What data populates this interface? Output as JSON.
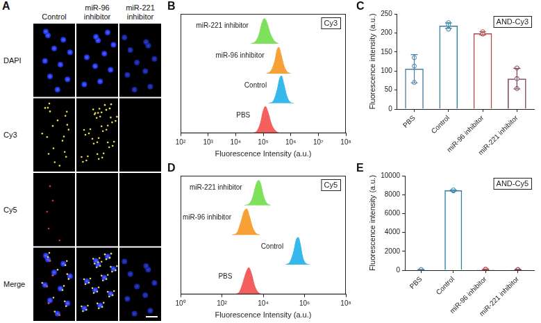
{
  "image_panel": {
    "panel": "A",
    "columns": [
      "Control",
      "miR-96 inhibitor",
      "miR-221 inhibitor"
    ],
    "rows": [
      "DAPI",
      "Cy3",
      "Cy5",
      "Merge"
    ]
  },
  "chart_data": [
    {
      "panel": "B",
      "type": "line",
      "title": "Cy3",
      "x_label": "Fluorescence Intensity (a.u.)",
      "log": "x",
      "xlim": [
        100,
        100000000
      ],
      "xticks": [
        {
          "value": 100,
          "label": "10²"
        },
        {
          "value": 1000,
          "label": "10³"
        },
        {
          "value": 10000,
          "label": "10⁴"
        },
        {
          "value": 100000,
          "label": "10⁵"
        },
        {
          "value": 1000000,
          "label": "10⁶"
        },
        {
          "value": 10000000,
          "label": "10⁷"
        },
        {
          "value": 100000000,
          "label": "10⁸"
        }
      ],
      "ylim": [
        0,
        100
      ],
      "tick_labels": "x",
      "grid": false,
      "series": [
        {
          "name": "miR-221 inhibitor",
          "color": "#7fe05c",
          "x": [
            35000,
            52000,
            70000,
            90000,
            110000,
            135000,
            180000,
            250000,
            360000
          ],
          "values": [
            0,
            7,
            30,
            70,
            85,
            72,
            35,
            10,
            0
          ]
        },
        {
          "name": "miR-96 inhibitor",
          "color": "#f7a035",
          "x": [
            130000,
            190000,
            260000,
            320000,
            370000,
            440000,
            560000,
            720000,
            1000000
          ],
          "values": [
            0,
            9,
            40,
            80,
            88,
            66,
            27,
            7,
            0
          ]
        },
        {
          "name": "Control",
          "color": "#35b8ea",
          "x": [
            160000,
            240000,
            320000,
            400000,
            460000,
            550000,
            700000,
            900000,
            1300000
          ],
          "values": [
            0,
            10,
            45,
            85,
            92,
            68,
            28,
            6,
            0
          ]
        },
        {
          "name": "PBS",
          "color": "#f25f5c",
          "x": [
            40000,
            60000,
            80000,
            100000,
            120000,
            150000,
            200000,
            280000,
            400000
          ],
          "values": [
            0,
            8,
            35,
            75,
            90,
            70,
            30,
            8,
            0
          ]
        }
      ]
    },
    {
      "panel": "C",
      "type": "bar",
      "title": "AND-Cy3",
      "y_label": "Fluorescence intensity (a.u.)",
      "categories": [
        "PBS",
        "Control",
        "miR-96 inhibitor",
        "miR-221 inhibitor"
      ],
      "values": [
        106,
        219,
        199,
        80
      ],
      "errors": [
        37,
        7,
        4,
        27
      ],
      "points": [
        [
          135,
          113,
          70
        ],
        [
          227,
          222,
          210
        ],
        [
          203,
          198,
          197
        ],
        [
          108,
          80,
          54
        ]
      ],
      "colors": [
        "#4a7ea6",
        "#2f7fa3",
        "#b2474c",
        "#7a3c5c"
      ],
      "ylim": [
        0,
        250
      ],
      "yticks": [
        0,
        50,
        100,
        150,
        200,
        250
      ],
      "grid": false
    },
    {
      "panel": "D",
      "type": "line",
      "title": "Cy5",
      "x_label": "Fluorescence Intensity (a.u.)",
      "log": "x",
      "xlim": [
        1,
        100000000
      ],
      "xticks": [
        {
          "value": 1,
          "label": "10⁰"
        },
        {
          "value": 100,
          "label": "10²"
        },
        {
          "value": 10000,
          "label": "10⁴"
        },
        {
          "value": 1000000,
          "label": "10⁶"
        },
        {
          "value": 100000000,
          "label": "10⁸"
        }
      ],
      "ylim": [
        0,
        100
      ],
      "tick_labels": "x",
      "grid": false,
      "series": [
        {
          "name": "miR-221 inhibitor",
          "color": "#7fe05c",
          "x": [
            1200,
            2200,
            3200,
            4500,
            6000,
            7600,
            10000,
            14000,
            23000
          ],
          "values": [
            0,
            7,
            30,
            70,
            85,
            72,
            35,
            10,
            0
          ]
        },
        {
          "name": "miR-96 inhibitor",
          "color": "#f7a035",
          "x": [
            300,
            550,
            800,
            1200,
            1600,
            2100,
            3000,
            4300,
            7000
          ],
          "values": [
            0,
            9,
            40,
            80,
            88,
            66,
            27,
            7,
            0
          ]
        },
        {
          "name": "Control",
          "color": "#35b8ea",
          "x": [
            120000,
            200000,
            300000,
            400000,
            500000,
            630000,
            800000,
            1100000,
            1800000
          ],
          "values": [
            0,
            10,
            45,
            85,
            92,
            68,
            28,
            6,
            0
          ]
        },
        {
          "name": "PBS",
          "color": "#f25f5c",
          "x": [
            400,
            700,
            1000,
            1500,
            2000,
            2700,
            3800,
            5500,
            9000
          ],
          "values": [
            0,
            8,
            35,
            75,
            90,
            70,
            30,
            8,
            0
          ]
        }
      ]
    },
    {
      "panel": "E",
      "type": "bar",
      "title": "AND-Cy5",
      "y_label": "Fluorescence intensity (a.u.)",
      "categories": [
        "PBS",
        "Control",
        "miR-96 inhibitor",
        "miR-221 inhibitor"
      ],
      "values": [
        60,
        8450,
        90,
        60
      ],
      "errors": [
        30,
        60,
        40,
        30
      ],
      "points": [
        [
          40,
          70,
          70
        ],
        [
          8400,
          8460,
          8490
        ],
        [
          60,
          120,
          90
        ],
        [
          40,
          80,
          60
        ]
      ],
      "colors": [
        "#4a7ea6",
        "#2f7fa3",
        "#b2474c",
        "#7a3c5c"
      ],
      "ylim": [
        0,
        10000
      ],
      "yticks": [
        0,
        2000,
        4000,
        6000,
        8000,
        10000
      ],
      "grid": false
    }
  ]
}
